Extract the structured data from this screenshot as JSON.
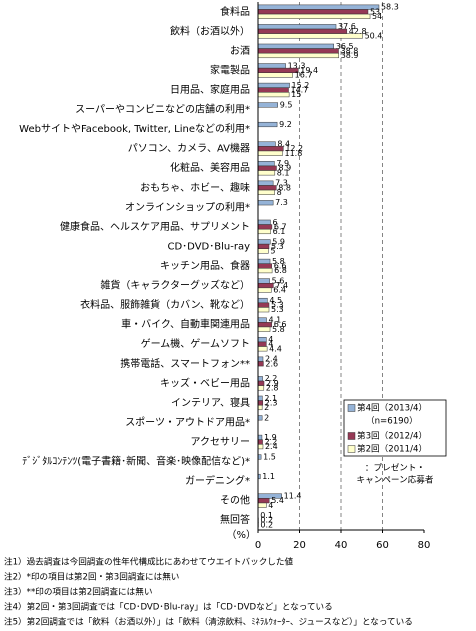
{
  "chart_data": {
    "type": "hbar",
    "categories": [
      "食料品",
      "飲料（お酒以外）",
      "お酒",
      "家電製品",
      "日用品、家庭用品",
      "スーパーやコンビニなどの店舗の利用*",
      "WebサイトやFacebook, Twitter, Lineなどの利用*",
      "パソコン、カメラ、AV機器",
      "化粧品、美容用品",
      "おもちゃ、ホビー、趣味",
      "オンラインショップの利用*",
      "健康食品、ヘルスケア用品、サプリメント",
      "CD･DVD･Blu-ray",
      "キッチン用品、食器",
      "雑貨（キャラクターグッズなど）",
      "衣料品、服飾雑貨（カバン、靴など）",
      "車・バイク、自動車関連用品",
      "ゲーム機、ゲームソフト",
      "携帯電話、スマートフォン**",
      "キッズ・ベビー用品",
      "インテリア、寝具",
      "スポーツ・アウトドア用品*",
      "アクセサリー",
      "ﾃﾞｼﾞﾀﾙｺﾝﾃﾝﾂ(電子書籍･新聞、音楽･映像配信など)*",
      "ガーデニング*",
      "その他",
      "無回答"
    ],
    "series": [
      {
        "name": "第4回（2013/4）",
        "note": "（n=6190）",
        "color": "#95b3d7",
        "values": [
          58.3,
          37.6,
          36.5,
          13.3,
          15.2,
          9.5,
          9.2,
          8.4,
          7.9,
          7.3,
          7.3,
          6.0,
          5.9,
          5.8,
          5.6,
          4.5,
          4.1,
          4.0,
          2.4,
          2.2,
          2.1,
          2.0,
          1.9,
          1.5,
          1.1,
          11.4,
          0.1
        ]
      },
      {
        "name": "第3回（2012/4）",
        "color": "#953955",
        "values": [
          53.0,
          42.8,
          38.8,
          19.4,
          14.7,
          null,
          null,
          12.2,
          8.9,
          8.8,
          null,
          6.7,
          5.3,
          6.6,
          7.4,
          5.3,
          6.6,
          4.0,
          2.6,
          2.9,
          2.3,
          null,
          2.2,
          null,
          null,
          5.4,
          0.2
        ]
      },
      {
        "name": "第2回（2011/4）",
        "color": "#ffffcc",
        "values": [
          54.0,
          50.4,
          38.9,
          16.7,
          15.0,
          null,
          null,
          11.8,
          8.1,
          8.0,
          null,
          6.1,
          5.0,
          6.8,
          6.4,
          5.3,
          5.8,
          4.4,
          null,
          2.8,
          2.0,
          null,
          2.4,
          null,
          null,
          4.0,
          0.2
        ]
      }
    ],
    "xlim": [
      0,
      80
    ],
    "xticks": [
      0,
      20,
      40,
      60,
      80
    ],
    "grid": true,
    "xlabel": "（%）",
    "legend": "lower right",
    "annotation": [
      "：プレゼント・",
      "キャンペーン応募者"
    ],
    "notes": [
      "注1）過去調査は今回調査の性年代構成比にあわせてウエイトバックした値",
      "注2）*印の項目は第2回・第3回調査には無い",
      "注3）**印の項目は第2回調査には無い",
      "注4）第2回・第3回調査では「CD･DVD･Blu-ray」は「CD･DVDなど」となっている",
      "注5）第2回調査では「飲料（お酒以外）」は「飲料（清涼飲料、ﾐﾈﾗﾙｳｫｰﾀｰ、ジュースなど）」となっている"
    ]
  }
}
